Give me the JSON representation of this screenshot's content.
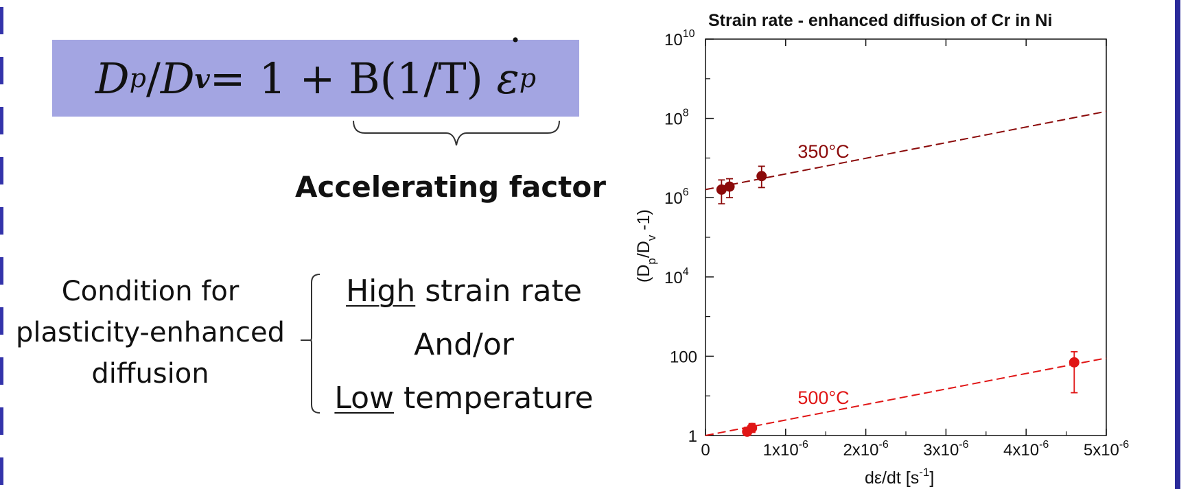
{
  "formula": {
    "lhs_num": "D",
    "lhs_num_sub": "p",
    "slash": "/",
    "lhs_den": "D",
    "lhs_den_sub": "v",
    "rhs": "= 1 + B(1/T) ",
    "rate": "ε",
    "rate_sub": "p"
  },
  "accelerating_label": "Accelerating factor",
  "condition": {
    "line1": "Condition for",
    "line2": "plasticity-enhanced",
    "line3": "diffusion"
  },
  "options": {
    "high_word": "High",
    "high_rest": " strain rate",
    "andor": "And/or",
    "low_word": "Low",
    "low_rest": " temperature"
  },
  "colors": {
    "formula_bg": "#a3a5e2",
    "series_350": "#8b0a0a",
    "series_500": "#e01616",
    "frame": "#2a2a9a"
  },
  "chart_data": {
    "type": "scatter",
    "title": "Strain rate - enhanced diffusion of Cr in Ni",
    "xlabel": {
      "base": "dε/dt [s",
      "sup": "-1",
      "end": "]"
    },
    "ylabel": {
      "p1": "(D",
      "sub1": "p",
      "p2": "/D",
      "sub2": "v",
      "p3": " -1)"
    },
    "xlim": [
      0,
      5e-06
    ],
    "ylim_log10": [
      0,
      10
    ],
    "y_scale": "log",
    "x_ticks": [
      {
        "value": 0,
        "base": "0",
        "sup": ""
      },
      {
        "value": 1e-06,
        "base": "1x10",
        "sup": "-6"
      },
      {
        "value": 2e-06,
        "base": "2x10",
        "sup": "-6"
      },
      {
        "value": 3e-06,
        "base": "3x10",
        "sup": "-6"
      },
      {
        "value": 4e-06,
        "base": "4x10",
        "sup": "-6"
      },
      {
        "value": 5e-06,
        "base": "5x10",
        "sup": "-6"
      }
    ],
    "y_ticks": [
      {
        "log": 0,
        "base": "1",
        "sup": ""
      },
      {
        "log": 2,
        "base": "100",
        "sup": ""
      },
      {
        "log": 4,
        "base": "10",
        "sup": "4"
      },
      {
        "log": 6,
        "base": "10",
        "sup": "6"
      },
      {
        "log": 8,
        "base": "10",
        "sup": "8"
      },
      {
        "log": 10,
        "base": "10",
        "sup": "10"
      }
    ],
    "series": [
      {
        "name": "350°C",
        "color": "#8b0a0a",
        "points": [
          {
            "x": 2e-07,
            "y": 1600000.0,
            "ylo": 700000.0,
            "yhi": 2800000.0
          },
          {
            "x": 3e-07,
            "y": 1900000.0,
            "ylo": 1000000.0,
            "yhi": 3000000.0
          },
          {
            "x": 7e-07,
            "y": 3500000.0,
            "ylo": 1800000.0,
            "yhi": 6200000.0
          }
        ],
        "fit": [
          {
            "x": 0,
            "y": 1600000.0
          },
          {
            "x": 5e-06,
            "y": 150000000.0
          }
        ]
      },
      {
        "name": "500°C",
        "color": "#e01616",
        "points": [
          {
            "x": 5.2e-07,
            "y": 1.25,
            "ylo": 1.0,
            "yhi": 1.6
          },
          {
            "x": 5.8e-07,
            "y": 1.55,
            "ylo": 1.2,
            "yhi": 2.0
          },
          {
            "x": 4.6e-06,
            "y": 70,
            "ylo": 12,
            "yhi": 130
          }
        ],
        "fit": [
          {
            "x": 0,
            "y": 1.0
          },
          {
            "x": 5e-06,
            "y": 90
          }
        ]
      }
    ]
  }
}
